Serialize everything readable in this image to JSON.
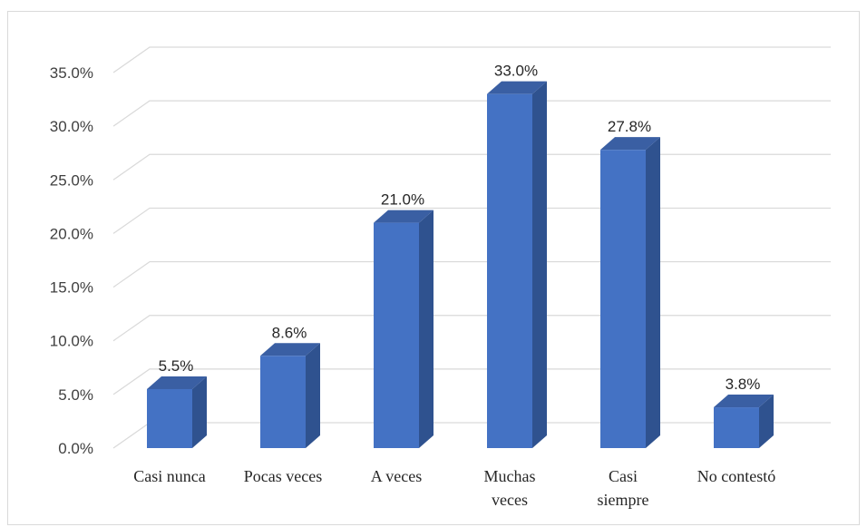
{
  "chart_data": {
    "type": "bar",
    "style": "3d-column",
    "title": "",
    "xlabel": "",
    "ylabel": "",
    "categories": [
      [
        "Casi nunca"
      ],
      [
        "Pocas veces"
      ],
      [
        "A veces"
      ],
      [
        "Muchas",
        "veces"
      ],
      [
        "Casi",
        "siempre"
      ],
      [
        "No contestó"
      ]
    ],
    "values": [
      5.5,
      8.6,
      21.0,
      33.0,
      27.8,
      3.8
    ],
    "data_labels": [
      "5.5%",
      "8.6%",
      "21.0%",
      "33.0%",
      "27.8%",
      "3.8%"
    ],
    "ylim": [
      0,
      35
    ],
    "yticks": [
      0,
      5,
      10,
      15,
      20,
      25,
      30,
      35
    ],
    "ytick_labels": [
      "0.0%",
      "5.0%",
      "10.0%",
      "15.0%",
      "20.0%",
      "25.0%",
      "30.0%",
      "35.0%"
    ],
    "grid": true,
    "legend": "none",
    "colors": {
      "bar_front": "#4472c4",
      "bar_side": "#2f528f",
      "bar_top": "#3a5fa3",
      "grid": "#d9d9d9",
      "frame": "#d9d9d9"
    }
  }
}
